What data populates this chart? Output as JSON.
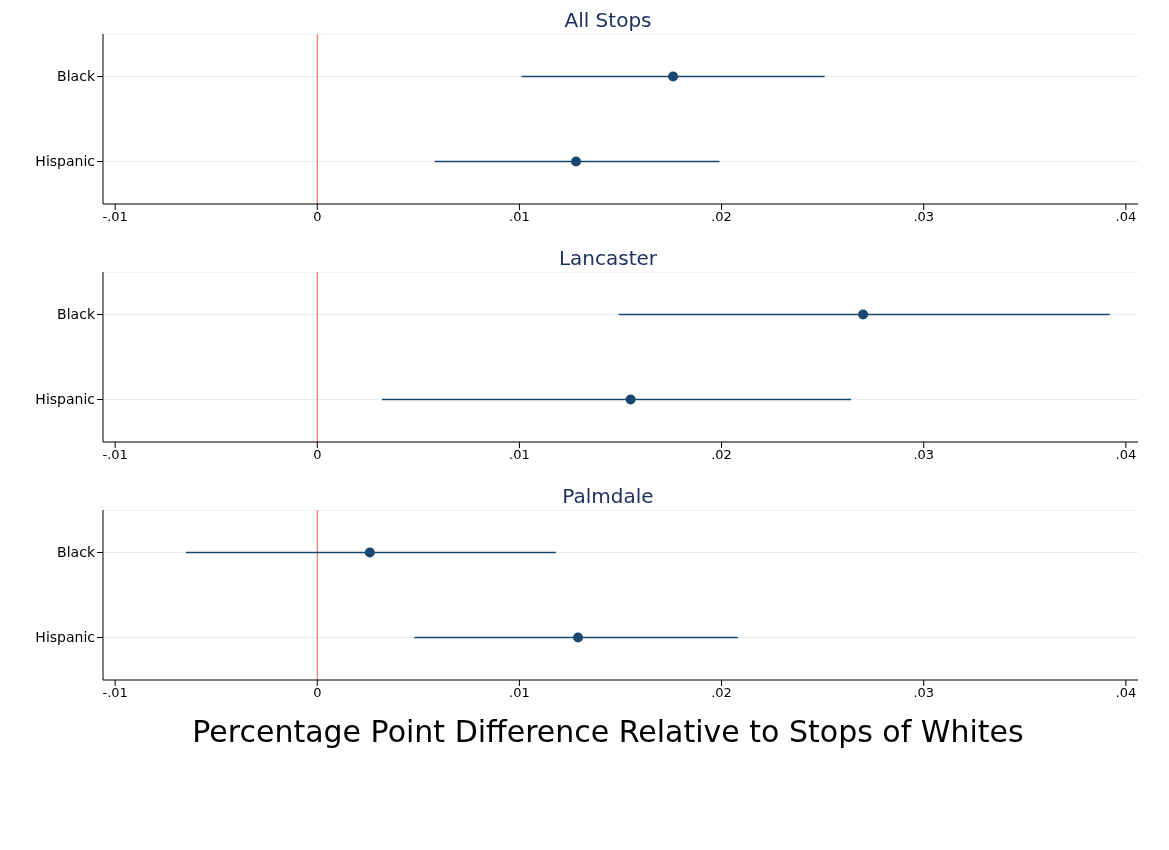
{
  "chart_data": [
    {
      "type": "scatter",
      "title": "All Stops",
      "orientation": "horizontal",
      "categories": [
        "Black",
        "Hispanic"
      ],
      "series": [
        {
          "color": "#1a476f",
          "values": [
            0.0176,
            0.0128
          ],
          "errors": [
            [
              0.0101,
              0.0251
            ],
            [
              0.0058,
              0.0199
            ]
          ]
        }
      ],
      "marker": "circle",
      "grid": "y",
      "xlim": [
        -0.0106,
        0.0406
      ],
      "xticks": [
        {
          "value": -0.01,
          "label": "-.01"
        },
        {
          "value": 0,
          "label": "0"
        },
        {
          "value": 0.01,
          "label": ".01"
        },
        {
          "value": 0.02,
          "label": ".02"
        },
        {
          "value": 0.03,
          "label": ".03"
        },
        {
          "value": 0.04,
          "label": ".04"
        }
      ],
      "ref_lines": [
        {
          "axis": "x",
          "value": 0,
          "color": "#e8604a"
        }
      ]
    },
    {
      "type": "scatter",
      "title": "Lancaster",
      "orientation": "horizontal",
      "categories": [
        "Black",
        "Hispanic"
      ],
      "series": [
        {
          "color": "#1a476f",
          "values": [
            0.027,
            0.0155
          ],
          "errors": [
            [
              0.0149,
              0.0392
            ],
            [
              0.0032,
              0.0264
            ]
          ]
        }
      ],
      "marker": "circle",
      "grid": "y",
      "xlim": [
        -0.0106,
        0.0406
      ],
      "xticks": [
        {
          "value": -0.01,
          "label": "-.01"
        },
        {
          "value": 0,
          "label": "0"
        },
        {
          "value": 0.01,
          "label": ".01"
        },
        {
          "value": 0.02,
          "label": ".02"
        },
        {
          "value": 0.03,
          "label": ".03"
        },
        {
          "value": 0.04,
          "label": ".04"
        }
      ],
      "ref_lines": [
        {
          "axis": "x",
          "value": 0,
          "color": "#e8604a"
        }
      ]
    },
    {
      "type": "scatter",
      "title": "Palmdale",
      "orientation": "horizontal",
      "categories": [
        "Black",
        "Hispanic"
      ],
      "series": [
        {
          "color": "#1a476f",
          "values": [
            0.0026,
            0.0129
          ],
          "errors": [
            [
              -0.0065,
              0.0118
            ],
            [
              0.0048,
              0.0208
            ]
          ]
        }
      ],
      "marker": "circle",
      "grid": "y",
      "xlim": [
        -0.0106,
        0.0406
      ],
      "xticks": [
        {
          "value": -0.01,
          "label": "-.01"
        },
        {
          "value": 0,
          "label": "0"
        },
        {
          "value": 0.01,
          "label": ".01"
        },
        {
          "value": 0.02,
          "label": ".02"
        },
        {
          "value": 0.03,
          "label": ".03"
        },
        {
          "value": 0.04,
          "label": ".04"
        }
      ],
      "ref_lines": [
        {
          "axis": "x",
          "value": 0,
          "color": "#e8604a"
        }
      ],
      "xlabel": "Percentage Point Difference Relative to Stops of Whites"
    }
  ]
}
